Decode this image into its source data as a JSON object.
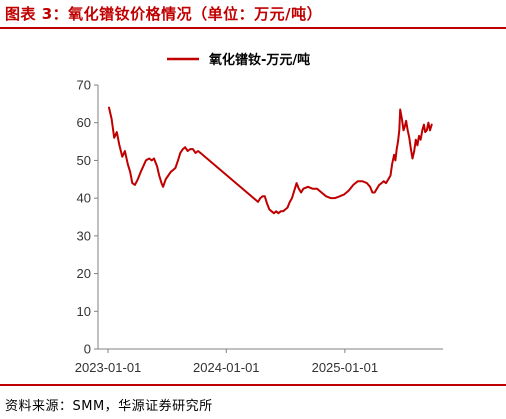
{
  "header": {
    "title": "图表 3：氧化镨钕价格情况（单位：万元/吨）"
  },
  "footer": {
    "source": "资料来源：SMM，华源证券研究所"
  },
  "colors": {
    "accent": "#c00000",
    "line": "#c00000"
  },
  "chart_data": {
    "type": "line",
    "title": "",
    "xlabel": "",
    "ylabel": "",
    "ylim": [
      0,
      70
    ],
    "yticks": [
      0,
      10,
      20,
      30,
      40,
      50,
      60,
      70
    ],
    "xticks": [
      "2023-01-01",
      "2024-01-01",
      "2025-01-01"
    ],
    "xlim": [
      "2022-12-01",
      "2025-10-31"
    ],
    "legend": "top-center",
    "grid": false,
    "series": [
      {
        "name": "氧化镨钕-万元/吨",
        "points": [
          [
            "2023-01-04",
            64.0
          ],
          [
            "2023-01-12",
            61.0
          ],
          [
            "2023-01-20",
            56.0
          ],
          [
            "2023-01-28",
            57.5
          ],
          [
            "2023-02-05",
            54.0
          ],
          [
            "2023-02-14",
            51.0
          ],
          [
            "2023-02-22",
            52.5
          ],
          [
            "2023-03-03",
            49.0
          ],
          [
            "2023-03-10",
            47.0
          ],
          [
            "2023-03-17",
            44.0
          ],
          [
            "2023-03-25",
            43.5
          ],
          [
            "2023-04-03",
            45.0
          ],
          [
            "2023-04-12",
            47.0
          ],
          [
            "2023-04-20",
            48.5
          ],
          [
            "2023-04-28",
            50.0
          ],
          [
            "2023-05-08",
            50.5
          ],
          [
            "2023-05-16",
            50.0
          ],
          [
            "2023-05-23",
            50.5
          ],
          [
            "2023-06-01",
            48.5
          ],
          [
            "2023-06-08",
            46.0
          ],
          [
            "2023-06-15",
            44.0
          ],
          [
            "2023-06-20",
            43.0
          ],
          [
            "2023-06-28",
            45.0
          ],
          [
            "2023-07-06",
            46.0
          ],
          [
            "2023-07-14",
            47.0
          ],
          [
            "2023-07-21",
            47.5
          ],
          [
            "2023-07-28",
            48.0
          ],
          [
            "2023-08-05",
            50.0
          ],
          [
            "2023-08-12",
            52.0
          ],
          [
            "2023-08-20",
            53.0
          ],
          [
            "2023-08-27",
            53.5
          ],
          [
            "2023-09-04",
            52.5
          ],
          [
            "2023-09-12",
            53.0
          ],
          [
            "2023-09-20",
            53.0
          ],
          [
            "2023-09-28",
            52.0
          ],
          [
            "2023-10-06",
            52.5
          ],
          [
            "2023-10-13",
            52.0
          ],
          [
            "2024-04-08",
            39.0
          ],
          [
            "2024-04-15",
            40.0
          ],
          [
            "2024-04-22",
            40.5
          ],
          [
            "2024-04-29",
            40.5
          ],
          [
            "2024-05-06",
            38.5
          ],
          [
            "2024-05-13",
            37.0
          ],
          [
            "2024-05-20",
            36.5
          ],
          [
            "2024-05-27",
            36.0
          ],
          [
            "2024-06-03",
            36.5
          ],
          [
            "2024-06-10",
            36.0
          ],
          [
            "2024-06-17",
            36.5
          ],
          [
            "2024-06-24",
            36.5
          ],
          [
            "2024-07-01",
            37.0
          ],
          [
            "2024-07-08",
            37.5
          ],
          [
            "2024-07-15",
            39.0
          ],
          [
            "2024-07-22",
            40.0
          ],
          [
            "2024-07-29",
            42.0
          ],
          [
            "2024-08-05",
            44.0
          ],
          [
            "2024-08-12",
            42.5
          ],
          [
            "2024-08-19",
            41.5
          ],
          [
            "2024-08-26",
            42.5
          ],
          [
            "2024-09-09",
            43.0
          ],
          [
            "2024-09-23",
            42.5
          ],
          [
            "2024-10-07",
            42.5
          ],
          [
            "2024-10-21",
            41.5
          ],
          [
            "2024-11-04",
            40.5
          ],
          [
            "2024-11-18",
            40.0
          ],
          [
            "2024-12-02",
            40.0
          ],
          [
            "2024-12-16",
            40.5
          ],
          [
            "2024-12-30",
            41.0
          ],
          [
            "2025-01-13",
            42.0
          ],
          [
            "2025-01-27",
            43.5
          ],
          [
            "2025-02-10",
            44.5
          ],
          [
            "2025-02-24",
            44.5
          ],
          [
            "2025-03-10",
            44.0
          ],
          [
            "2025-03-20",
            43.0
          ],
          [
            "2025-03-27",
            41.5
          ],
          [
            "2025-04-03",
            41.5
          ],
          [
            "2025-04-10",
            42.5
          ],
          [
            "2025-04-17",
            43.5
          ],
          [
            "2025-04-24",
            44.0
          ],
          [
            "2025-05-01",
            44.5
          ],
          [
            "2025-05-08",
            44.0
          ],
          [
            "2025-05-15",
            45.0
          ],
          [
            "2025-05-22",
            46.0
          ],
          [
            "2025-05-27",
            49.0
          ],
          [
            "2025-06-02",
            51.5
          ],
          [
            "2025-06-06",
            50.0
          ],
          [
            "2025-06-10",
            53.0
          ],
          [
            "2025-06-14",
            55.0
          ],
          [
            "2025-06-18",
            58.0
          ],
          [
            "2025-06-21",
            63.5
          ],
          [
            "2025-06-26",
            61.0
          ],
          [
            "2025-07-01",
            58.0
          ],
          [
            "2025-07-05",
            59.0
          ],
          [
            "2025-07-09",
            60.5
          ],
          [
            "2025-07-14",
            58.0
          ],
          [
            "2025-07-19",
            56.0
          ],
          [
            "2025-07-24",
            53.0
          ],
          [
            "2025-07-29",
            50.5
          ],
          [
            "2025-08-03",
            52.5
          ],
          [
            "2025-08-08",
            55.5
          ],
          [
            "2025-08-13",
            54.0
          ],
          [
            "2025-08-18",
            56.5
          ],
          [
            "2025-08-23",
            55.5
          ],
          [
            "2025-08-28",
            58.0
          ],
          [
            "2025-09-02",
            59.5
          ],
          [
            "2025-09-06",
            57.5
          ],
          [
            "2025-09-11",
            58.0
          ],
          [
            "2025-09-16",
            60.0
          ],
          [
            "2025-09-21",
            58.0
          ],
          [
            "2025-09-26",
            59.5
          ]
        ]
      }
    ]
  }
}
